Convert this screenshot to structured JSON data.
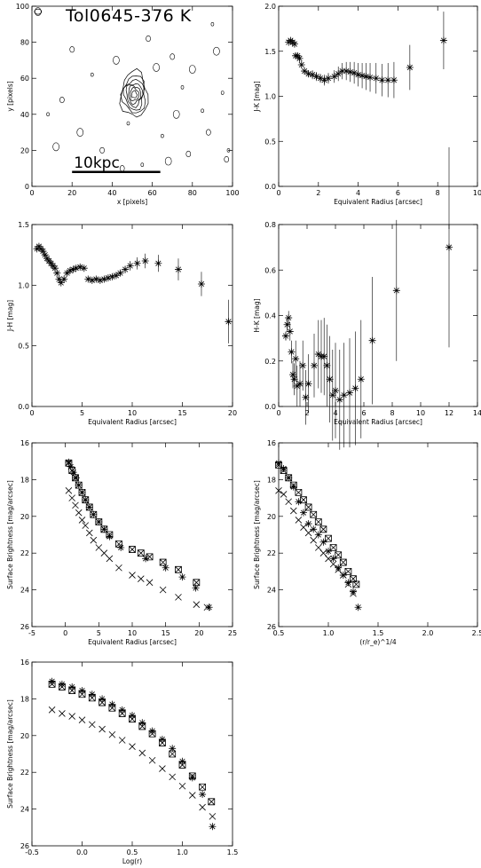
{
  "chart_data": [
    {
      "id": "contour",
      "type": "contour",
      "title": "Tol0645-376 K",
      "xlabel": "x [pixels]",
      "ylabel": "y [pixels]",
      "xlim": [
        0,
        100
      ],
      "ylim": [
        0,
        100
      ],
      "xticks": [
        0,
        20,
        40,
        60,
        80,
        100
      ],
      "yticks": [
        0,
        20,
        40,
        60,
        80,
        100
      ],
      "scale_bar": {
        "label": "10kpc",
        "x0": 20,
        "x1": 64,
        "y": 8
      },
      "center": [
        51,
        51
      ]
    },
    {
      "id": "jk",
      "type": "scatter",
      "xlabel": "Equivalent Radius [arcsec]",
      "ylabel": "J-K [mag]",
      "xlim": [
        0,
        10
      ],
      "ylim": [
        0,
        2
      ],
      "xticks": [
        0,
        2,
        4,
        6,
        8,
        10
      ],
      "yticks": [
        "0.0",
        "0.5",
        "1.0",
        "1.5",
        "2.0"
      ],
      "points": [
        [
          0.5,
          1.6,
          0.02
        ],
        [
          0.6,
          1.62,
          0.02
        ],
        [
          0.7,
          1.6,
          0.02
        ],
        [
          0.8,
          1.58,
          0.03
        ],
        [
          0.85,
          1.45,
          0.03
        ],
        [
          0.95,
          1.45,
          0.03
        ],
        [
          1.05,
          1.42,
          0.03
        ],
        [
          1.15,
          1.35,
          0.03
        ],
        [
          1.3,
          1.28,
          0.04
        ],
        [
          1.5,
          1.25,
          0.04
        ],
        [
          1.7,
          1.24,
          0.05
        ],
        [
          1.9,
          1.22,
          0.05
        ],
        [
          2.1,
          1.2,
          0.05
        ],
        [
          2.3,
          1.18,
          0.06
        ],
        [
          2.5,
          1.2,
          0.06
        ],
        [
          2.8,
          1.22,
          0.07
        ],
        [
          3.0,
          1.25,
          0.08
        ],
        [
          3.2,
          1.28,
          0.09
        ],
        [
          3.4,
          1.28,
          0.1
        ],
        [
          3.6,
          1.27,
          0.11
        ],
        [
          3.8,
          1.26,
          0.12
        ],
        [
          4.0,
          1.24,
          0.13
        ],
        [
          4.2,
          1.23,
          0.14
        ],
        [
          4.4,
          1.22,
          0.15
        ],
        [
          4.6,
          1.21,
          0.16
        ],
        [
          4.9,
          1.2,
          0.17
        ],
        [
          5.2,
          1.18,
          0.18
        ],
        [
          5.5,
          1.18,
          0.19
        ],
        [
          5.8,
          1.18,
          0.2
        ],
        [
          6.6,
          1.32,
          0.25
        ],
        [
          8.3,
          1.62,
          0.32
        ]
      ]
    },
    {
      "id": "jh",
      "type": "scatter",
      "xlabel": "Equivalent Radius [arcsec]",
      "ylabel": "J-H [mag]",
      "xlim": [
        0,
        20
      ],
      "ylim": [
        0,
        1.5
      ],
      "xticks": [
        0,
        5,
        10,
        15,
        20
      ],
      "yticks": [
        "0.0",
        "0.5",
        "1.0",
        "1.5"
      ],
      "points": [
        [
          0.5,
          1.3,
          0.02
        ],
        [
          0.7,
          1.32,
          0.02
        ],
        [
          0.9,
          1.3,
          0.02
        ],
        [
          1.1,
          1.28,
          0.02
        ],
        [
          1.3,
          1.25,
          0.02
        ],
        [
          1.5,
          1.22,
          0.02
        ],
        [
          1.7,
          1.2,
          0.02
        ],
        [
          1.9,
          1.18,
          0.02
        ],
        [
          2.1,
          1.16,
          0.02
        ],
        [
          2.3,
          1.14,
          0.02
        ],
        [
          2.5,
          1.1,
          0.02
        ],
        [
          2.7,
          1.05,
          0.02
        ],
        [
          2.9,
          1.02,
          0.02
        ],
        [
          3.2,
          1.05,
          0.02
        ],
        [
          3.5,
          1.1,
          0.02
        ],
        [
          3.8,
          1.12,
          0.02
        ],
        [
          4.1,
          1.13,
          0.02
        ],
        [
          4.4,
          1.14,
          0.02
        ],
        [
          4.8,
          1.15,
          0.02
        ],
        [
          5.2,
          1.14,
          0.02
        ],
        [
          5.6,
          1.05,
          0.02
        ],
        [
          6.0,
          1.04,
          0.02
        ],
        [
          6.4,
          1.05,
          0.02
        ],
        [
          6.8,
          1.04,
          0.02
        ],
        [
          7.2,
          1.05,
          0.02
        ],
        [
          7.6,
          1.06,
          0.02
        ],
        [
          8.0,
          1.07,
          0.02
        ],
        [
          8.4,
          1.08,
          0.02
        ],
        [
          8.8,
          1.1,
          0.02
        ],
        [
          9.3,
          1.13,
          0.03
        ],
        [
          9.8,
          1.16,
          0.04
        ],
        [
          10.5,
          1.18,
          0.05
        ],
        [
          11.3,
          1.2,
          0.06
        ],
        [
          12.6,
          1.18,
          0.07
        ],
        [
          14.6,
          1.13,
          0.09
        ],
        [
          16.9,
          1.01,
          0.1
        ],
        [
          19.6,
          0.7,
          0.18
        ]
      ]
    },
    {
      "id": "hk",
      "type": "scatter",
      "xlabel": "Equivalent Radius [arcsec]",
      "ylabel": "H-K [mag]",
      "xlim": [
        0,
        14
      ],
      "ylim": [
        0,
        0.8
      ],
      "xticks": [
        0,
        2,
        4,
        6,
        8,
        10,
        12,
        14
      ],
      "yticks": [
        "0.0",
        "0.2",
        "0.4",
        "0.6",
        "0.8"
      ],
      "points": [
        [
          0.5,
          0.31,
          0.02
        ],
        [
          0.6,
          0.36,
          0.03
        ],
        [
          0.7,
          0.39,
          0.03
        ],
        [
          0.8,
          0.33,
          0.04
        ],
        [
          0.9,
          0.24,
          0.05
        ],
        [
          1.0,
          0.14,
          0.06
        ],
        [
          1.1,
          0.12,
          0.07
        ],
        [
          1.2,
          0.21,
          0.08
        ],
        [
          1.3,
          0.09,
          0.09
        ],
        [
          1.5,
          0.1,
          0.1
        ],
        [
          1.7,
          0.18,
          0.11
        ],
        [
          1.9,
          0.04,
          0.12
        ],
        [
          2.1,
          0.1,
          0.13
        ],
        [
          2.5,
          0.18,
          0.14
        ],
        [
          2.8,
          0.23,
          0.15
        ],
        [
          3.0,
          0.22,
          0.16
        ],
        [
          3.2,
          0.22,
          0.17
        ],
        [
          3.4,
          0.18,
          0.18
        ],
        [
          3.6,
          0.12,
          0.19
        ],
        [
          3.8,
          0.05,
          0.2
        ],
        [
          4.0,
          0.07,
          0.21
        ],
        [
          4.3,
          0.03,
          0.22
        ],
        [
          4.6,
          0.05,
          0.23
        ],
        [
          5.0,
          0.06,
          0.24
        ],
        [
          5.4,
          0.08,
          0.25
        ],
        [
          5.8,
          0.12,
          0.26
        ],
        [
          6.6,
          0.29,
          0.28
        ],
        [
          8.3,
          0.51,
          0.31
        ],
        [
          12.0,
          0.7,
          0.44
        ]
      ]
    },
    {
      "id": "sb_r",
      "type": "scatter",
      "xlabel": "Equivalent Radius [arcsec]",
      "ylabel": "Surface Brightness [mag/arcsec]",
      "xlim": [
        -5,
        25
      ],
      "ylim": [
        26,
        16
      ],
      "xticks": [
        -5,
        0,
        5,
        10,
        15,
        20,
        25
      ],
      "yticks": [
        16,
        18,
        20,
        22,
        24,
        26
      ],
      "series": [
        {
          "marker": "asterisk",
          "x": [
            0.5,
            0.8,
            1.2,
            1.6,
            2.0,
            2.5,
            3.0,
            3.6,
            4.2,
            5.0,
            5.8,
            6.6,
            8.3,
            12.0,
            15.0,
            17.5,
            19.5,
            21.5
          ],
          "y": [
            17.05,
            17.3,
            17.6,
            17.9,
            18.3,
            18.7,
            19.1,
            19.5,
            19.9,
            20.3,
            20.7,
            21.1,
            21.7,
            22.3,
            22.8,
            23.3,
            23.9,
            24.95
          ]
        },
        {
          "marker": "hourglass",
          "x": [
            0.5,
            1.0,
            1.5,
            2.0,
            2.5,
            3.0,
            3.6,
            4.2,
            5.0,
            5.8,
            6.6,
            8.0,
            10.0,
            11.3,
            12.6,
            14.6,
            16.9,
            19.6
          ],
          "y": [
            17.1,
            17.5,
            17.9,
            18.3,
            18.7,
            19.1,
            19.5,
            19.9,
            20.3,
            20.7,
            21.0,
            21.5,
            21.8,
            22.0,
            22.2,
            22.5,
            22.9,
            23.6
          ]
        },
        {
          "marker": "cross",
          "x": [
            0.5,
            1.0,
            1.5,
            2.0,
            2.5,
            3.0,
            3.6,
            4.2,
            5.0,
            5.8,
            6.6,
            8.0,
            10.0,
            11.3,
            12.6,
            14.6,
            16.9,
            19.6,
            21.2
          ],
          "y": [
            18.6,
            19.0,
            19.4,
            19.8,
            20.2,
            20.5,
            20.9,
            21.3,
            21.7,
            22.0,
            22.3,
            22.8,
            23.2,
            23.4,
            23.6,
            24.0,
            24.4,
            24.8,
            24.95
          ]
        }
      ]
    },
    {
      "id": "sb_r14",
      "type": "scatter",
      "xlabel": "(r/r_e)^1/4",
      "ylabel": "Surface Brightness [mag/arcsec]",
      "xlim": [
        0.5,
        2.5
      ],
      "ylim": [
        26,
        16
      ],
      "xticks": [
        "0.5",
        "1.0",
        "1.5",
        "2.0",
        "2.5"
      ],
      "yticks": [
        16,
        18,
        20,
        22,
        24,
        26
      ],
      "series": [
        {
          "marker": "asterisk",
          "x": [
            0.5,
            0.55,
            0.6,
            0.65,
            0.7,
            0.75,
            0.8,
            0.85,
            0.9,
            0.95,
            1.0,
            1.05,
            1.1,
            1.15,
            1.2,
            1.25,
            1.3
          ],
          "y": [
            17.1,
            17.4,
            17.9,
            18.4,
            19.2,
            19.8,
            20.4,
            20.7,
            21.0,
            21.4,
            21.9,
            22.3,
            22.8,
            23.2,
            23.6,
            24.1,
            24.95
          ]
        },
        {
          "marker": "hourglass",
          "x": [
            0.5,
            0.55,
            0.6,
            0.65,
            0.7,
            0.75,
            0.8,
            0.85,
            0.9,
            0.95,
            1.0,
            1.05,
            1.1,
            1.15,
            1.2,
            1.25,
            1.28
          ],
          "y": [
            17.2,
            17.5,
            17.9,
            18.3,
            18.7,
            19.1,
            19.5,
            19.9,
            20.3,
            20.7,
            21.2,
            21.7,
            22.1,
            22.5,
            23.0,
            23.4,
            23.7
          ]
        },
        {
          "marker": "cross",
          "x": [
            0.5,
            0.55,
            0.6,
            0.65,
            0.7,
            0.75,
            0.8,
            0.85,
            0.9,
            0.95,
            1.0,
            1.05,
            1.1,
            1.15,
            1.2,
            1.25
          ],
          "y": [
            18.6,
            18.8,
            19.2,
            19.7,
            20.2,
            20.6,
            20.9,
            21.3,
            21.7,
            22.0,
            22.3,
            22.6,
            22.9,
            23.2,
            23.7,
            24.2
          ]
        }
      ]
    },
    {
      "id": "sb_log",
      "type": "scatter",
      "xlabel": "Log(r)",
      "ylabel": "Surface Brightness [mag/arcsec]",
      "xlim": [
        -0.5,
        1.5
      ],
      "ylim": [
        26,
        16
      ],
      "xticks": [
        "-0.5",
        "0.0",
        "0.5",
        "1.0",
        "1.5"
      ],
      "yticks": [
        16,
        18,
        20,
        22,
        24,
        26
      ],
      "series": [
        {
          "marker": "asterisk",
          "x": [
            -0.3,
            -0.2,
            -0.1,
            0.0,
            0.1,
            0.2,
            0.3,
            0.4,
            0.5,
            0.6,
            0.7,
            0.8,
            0.9,
            1.0,
            1.1,
            1.2,
            1.3
          ],
          "y": [
            17.05,
            17.2,
            17.35,
            17.55,
            17.75,
            18.0,
            18.3,
            18.6,
            18.9,
            19.3,
            19.75,
            20.2,
            20.7,
            21.4,
            22.3,
            23.2,
            24.95
          ]
        },
        {
          "marker": "hourglass",
          "x": [
            -0.3,
            -0.2,
            -0.1,
            0.0,
            0.1,
            0.2,
            0.3,
            0.4,
            0.5,
            0.6,
            0.7,
            0.8,
            0.9,
            1.0,
            1.1,
            1.2,
            1.29
          ],
          "y": [
            17.2,
            17.35,
            17.55,
            17.75,
            17.95,
            18.2,
            18.5,
            18.8,
            19.1,
            19.5,
            19.9,
            20.4,
            21.0,
            21.6,
            22.2,
            22.8,
            23.6
          ]
        },
        {
          "marker": "cross",
          "x": [
            -0.3,
            -0.2,
            -0.1,
            0.0,
            0.1,
            0.2,
            0.3,
            0.4,
            0.5,
            0.6,
            0.7,
            0.8,
            0.9,
            1.0,
            1.1,
            1.2,
            1.3
          ],
          "y": [
            18.6,
            18.8,
            18.95,
            19.15,
            19.4,
            19.65,
            19.95,
            20.25,
            20.6,
            20.95,
            21.35,
            21.8,
            22.25,
            22.75,
            23.25,
            23.9,
            24.4
          ]
        }
      ]
    }
  ]
}
